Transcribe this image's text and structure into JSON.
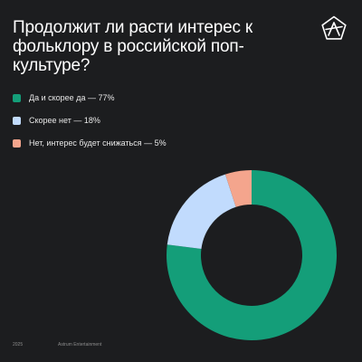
{
  "title": "Продолжит ли расти интерес к фольклору в российской поп-культуре?",
  "logo": {
    "icon": "astrum-star-icon",
    "color": "#ffffff"
  },
  "chart_data": {
    "type": "pie",
    "style": "donut",
    "start_angle_deg": 0,
    "direction": "clockwise",
    "series": [
      {
        "label": "Да и скорее да — 77%",
        "value": 77,
        "color": "#149e79"
      },
      {
        "label": "Скорее нет — 18%",
        "value": 18,
        "color": "#c1dbfd"
      },
      {
        "label": "Нет, интерес будет снижаться — 5%",
        "value": 5,
        "color": "#f4a58d"
      }
    ],
    "legend_position": "top-left"
  },
  "footer": {
    "year": "2025",
    "company": "Astrum Entertainment"
  },
  "colors": {
    "background": "#1c1d1f",
    "text": "#ffffff",
    "footer_text": "#8c8c8c"
  }
}
